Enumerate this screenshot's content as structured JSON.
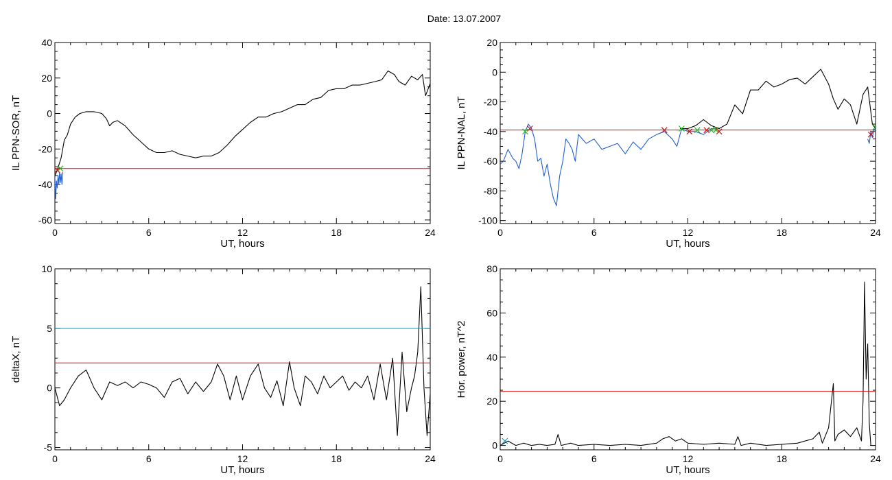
{
  "title": "Date:  13.07.2007",
  "colors": {
    "axis": "#000000",
    "signal": "#000000",
    "quiet": "#1f5fcf",
    "threshold_red": "#e00000",
    "threshold_cyan": "#1a8fb0",
    "marker_red": "#d01010",
    "marker_green": "#20c020"
  },
  "chart_data": [
    {
      "id": "sor",
      "type": "line",
      "title": "",
      "xlabel": "UT, hours",
      "ylabel": "IL PPN-SOR, nT",
      "xlim": [
        0,
        24
      ],
      "ylim": [
        -62,
        40
      ],
      "xticks": [
        0,
        6,
        12,
        18,
        24
      ],
      "yticks": [
        -60,
        -40,
        -20,
        0,
        20,
        40
      ],
      "series": [
        {
          "role": "signal",
          "x": [
            0,
            0.15,
            0.4,
            0.6,
            0.8,
            1.0,
            1.3,
            1.6,
            2.0,
            2.5,
            3.0,
            3.3,
            3.5,
            3.7,
            4.0,
            4.5,
            5.0,
            5.5,
            6.0,
            6.5,
            7.0,
            7.5,
            8.0,
            8.5,
            9.0,
            9.5,
            10.0,
            10.5,
            11.0,
            11.5,
            12.0,
            12.5,
            13.0,
            13.5,
            14.0,
            14.5,
            15.0,
            15.5,
            16.0,
            16.5,
            17.0,
            17.5,
            18.0,
            18.5,
            19.0,
            19.5,
            20.0,
            20.5,
            20.9,
            21.3,
            21.7,
            22.0,
            22.4,
            22.8,
            23.2,
            23.5,
            23.7,
            24.0
          ],
          "y": [
            -35,
            -32,
            -25,
            -15,
            -12,
            -6,
            -2,
            0,
            1,
            1,
            0,
            -3,
            -7,
            -5,
            -4,
            -7,
            -12,
            -16,
            -20,
            -22,
            -22,
            -21,
            -23,
            -24,
            -25,
            -24,
            -24,
            -22,
            -18,
            -13,
            -9,
            -5,
            -2,
            -2,
            0,
            1,
            3,
            5,
            5,
            8,
            9,
            13,
            14,
            14,
            16,
            16,
            17,
            18,
            19,
            24,
            22,
            18,
            16,
            21,
            19,
            22,
            10,
            17
          ]
        },
        {
          "role": "quiet",
          "x": [
            0,
            0.05,
            0.1,
            0.15,
            0.2,
            0.25,
            0.3,
            0.35,
            0.4,
            0.45,
            0.5
          ],
          "y": [
            -36,
            -48,
            -38,
            -42,
            -35,
            -40,
            -33,
            -39,
            -34,
            -40,
            -33
          ]
        }
      ],
      "thresholds": [
        {
          "role": "red",
          "value": -31
        }
      ],
      "markers": [
        {
          "x": 0.35,
          "y": -31,
          "color": "green"
        },
        {
          "x": 0.15,
          "y": -32,
          "color": "red"
        }
      ]
    },
    {
      "id": "nal",
      "type": "line",
      "title": "",
      "xlabel": "UT, hours",
      "ylabel": "IL PPN-NAL, nT",
      "xlim": [
        0,
        24
      ],
      "ylim": [
        -102,
        20
      ],
      "xticks": [
        0,
        6,
        12,
        18,
        24
      ],
      "yticks": [
        -100,
        -80,
        -60,
        -40,
        -20,
        0,
        20
      ],
      "series": [
        {
          "role": "quiet",
          "x": [
            0,
            0.2,
            0.5,
            0.8,
            1.0,
            1.2,
            1.4,
            1.6,
            1.8,
            2.0,
            2.2,
            2.4,
            2.6,
            2.8,
            3.0,
            3.2,
            3.4,
            3.6,
            3.8,
            4.0,
            4.2,
            4.4,
            4.6,
            4.8,
            5.0,
            5.5,
            6.0,
            6.5,
            7.0,
            7.5,
            8.0,
            8.5,
            9.0,
            9.5,
            10.0,
            10.5,
            11.0,
            11.3,
            11.6,
            12.0,
            12.5,
            13.0,
            13.5,
            14.0
          ],
          "y": [
            -62,
            -60,
            -52,
            -58,
            -60,
            -65,
            -55,
            -40,
            -35,
            -38,
            -45,
            -60,
            -58,
            -70,
            -62,
            -75,
            -85,
            -90,
            -70,
            -60,
            -45,
            -48,
            -52,
            -60,
            -42,
            -48,
            -45,
            -52,
            -50,
            -48,
            -55,
            -47,
            -52,
            -45,
            -42,
            -40,
            -45,
            -50,
            -38,
            -40,
            -40,
            -42,
            -38,
            -38
          ]
        },
        {
          "role": "quiet",
          "x": [
            23.5,
            23.6,
            23.7,
            23.8,
            23.9,
            24.0
          ],
          "y": [
            -45,
            -48,
            -40,
            -44,
            -38,
            -40
          ]
        },
        {
          "role": "signal",
          "x": [
            11.5,
            12.0,
            12.5,
            13.0,
            13.5,
            14.0,
            14.5,
            15.0,
            15.5,
            16.0,
            16.5,
            17.0,
            17.5,
            18.0,
            18.5,
            19.0,
            19.5,
            20.0,
            20.5,
            21.0,
            21.3,
            21.6,
            22.0,
            22.4,
            22.8,
            23.2,
            23.5,
            23.8,
            24.0
          ],
          "y": [
            -38,
            -38,
            -36,
            -32,
            -36,
            -38,
            -35,
            -22,
            -28,
            -12,
            -12,
            -6,
            -10,
            -8,
            -5,
            -4,
            -8,
            -3,
            2,
            -8,
            -18,
            -25,
            -18,
            -22,
            -35,
            -15,
            -10,
            -35,
            -38
          ]
        }
      ],
      "thresholds": [
        {
          "role": "red",
          "value": -39
        }
      ],
      "markers": [
        {
          "x": 1.6,
          "y": -40,
          "color": "green"
        },
        {
          "x": 1.9,
          "y": -38,
          "color": "red"
        },
        {
          "x": 10.5,
          "y": -39,
          "color": "red"
        },
        {
          "x": 11.6,
          "y": -38,
          "color": "green"
        },
        {
          "x": 12.1,
          "y": -40,
          "color": "red"
        },
        {
          "x": 12.6,
          "y": -39,
          "color": "green"
        },
        {
          "x": 13.2,
          "y": -39,
          "color": "red"
        },
        {
          "x": 13.5,
          "y": -39,
          "color": "green"
        },
        {
          "x": 13.8,
          "y": -39,
          "color": "green"
        },
        {
          "x": 14.0,
          "y": -40,
          "color": "red"
        },
        {
          "x": 23.7,
          "y": -42,
          "color": "red"
        },
        {
          "x": 24.0,
          "y": -37,
          "color": "green"
        }
      ]
    },
    {
      "id": "deltax",
      "type": "line",
      "title": "",
      "xlabel": "UT, hours",
      "ylabel": "deltaX, nT",
      "xlim": [
        0,
        24
      ],
      "ylim": [
        -5.2,
        10
      ],
      "xticks": [
        0,
        6,
        12,
        18,
        24
      ],
      "yticks": [
        -5,
        0,
        5,
        10
      ],
      "series": [
        {
          "role": "signal",
          "x": [
            0,
            0.3,
            0.6,
            1.0,
            1.5,
            2.0,
            2.5,
            3.0,
            3.5,
            4.0,
            4.5,
            5.0,
            5.5,
            6.0,
            6.5,
            7.0,
            7.5,
            8.0,
            8.5,
            9.0,
            9.5,
            10.0,
            10.4,
            10.8,
            11.2,
            11.6,
            12.0,
            12.5,
            13.0,
            13.4,
            13.8,
            14.2,
            14.6,
            15.0,
            15.3,
            15.7,
            16.0,
            16.4,
            16.8,
            17.2,
            17.6,
            18.0,
            18.4,
            18.8,
            19.2,
            19.6,
            20.0,
            20.4,
            20.8,
            21.2,
            21.6,
            21.9,
            22.2,
            22.5,
            22.8,
            23.0,
            23.2,
            23.4,
            23.6,
            23.8,
            24.0
          ],
          "y": [
            0,
            -1.5,
            -1,
            0,
            1,
            1.5,
            0,
            -1,
            0.5,
            0.2,
            0.5,
            0,
            0.5,
            0.3,
            0,
            -0.8,
            0.5,
            0.8,
            -0.5,
            0.5,
            -0.3,
            0.5,
            2,
            1,
            -1,
            1,
            -1,
            1,
            2,
            0,
            -0.8,
            0.6,
            -1.5,
            2.2,
            0,
            -1.5,
            1,
            0.5,
            -0.5,
            1,
            0,
            0.5,
            1,
            -0.2,
            0.5,
            0,
            1,
            -1,
            2,
            -1,
            2.5,
            -4,
            3,
            -2,
            0,
            1,
            3,
            8.5,
            0,
            -4,
            -0.5
          ]
        }
      ],
      "thresholds": [
        {
          "role": "cyan",
          "value": 5
        },
        {
          "role": "red",
          "value": 2.1
        }
      ],
      "markers": []
    },
    {
      "id": "power",
      "type": "line",
      "title": "",
      "xlabel": "UT, hours",
      "ylabel": "Hor. power, nT^2",
      "xlim": [
        0,
        24
      ],
      "ylim": [
        -2,
        80
      ],
      "xticks": [
        0,
        6,
        12,
        18,
        24
      ],
      "yticks": [
        0,
        20,
        40,
        60,
        80
      ],
      "series": [
        {
          "role": "signal",
          "x": [
            0,
            0.5,
            1.0,
            1.5,
            2.0,
            2.5,
            3.0,
            3.5,
            3.7,
            3.9,
            4.5,
            5.0,
            6.0,
            7.0,
            8.0,
            9.0,
            10.0,
            10.4,
            10.8,
            11.2,
            11.6,
            12.0,
            13.0,
            14.0,
            15.0,
            15.2,
            15.4,
            16.0,
            17.0,
            18.0,
            19.0,
            20.0,
            20.4,
            20.6,
            21.0,
            21.3,
            21.4,
            21.6,
            22.0,
            22.4,
            22.8,
            23.1,
            23.2,
            23.3,
            23.4,
            23.5,
            23.6,
            23.7,
            24.0
          ],
          "y": [
            0,
            2,
            0,
            1,
            0,
            0.5,
            0,
            0.5,
            5,
            0,
            1,
            0,
            0.5,
            0,
            0.5,
            0,
            1,
            3,
            4,
            2,
            3,
            1,
            0.5,
            1,
            0.5,
            4,
            0,
            1,
            0,
            0.5,
            1,
            3,
            6,
            1,
            8,
            28,
            2,
            5,
            7,
            4,
            8,
            2,
            20,
            74,
            30,
            46,
            10,
            0,
            0
          ]
        }
      ],
      "thresholds": [
        {
          "role": "red",
          "value": 24.5
        }
      ],
      "markers": [
        {
          "x": 0.3,
          "y": 2,
          "color": "cyan"
        }
      ]
    }
  ]
}
